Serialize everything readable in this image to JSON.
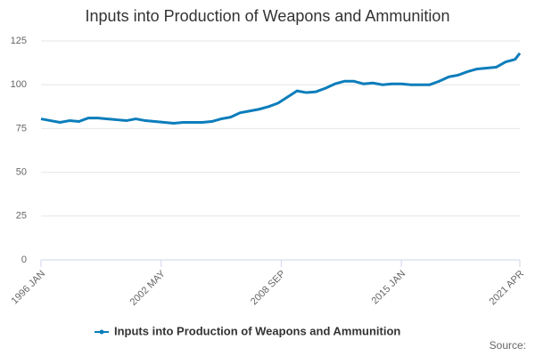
{
  "chart_data": {
    "type": "line",
    "title": "Inputs into Production of Weapons and Ammunition",
    "x": [
      "1996 JAN",
      "1996 JUL",
      "1997 JAN",
      "1997 JUL",
      "1998 JAN",
      "1998 JUL",
      "1999 JAN",
      "1999 JUL",
      "2000 JAN",
      "2000 JUL",
      "2001 JAN",
      "2001 JUL",
      "2002 JAN",
      "2002 JUL",
      "2003 JAN",
      "2003 JUL",
      "2004 JAN",
      "2004 JUL",
      "2005 JAN",
      "2005 JUL",
      "2006 JAN",
      "2006 JUL",
      "2007 JAN",
      "2007 JUL",
      "2008 JAN",
      "2008 JUL",
      "2009 JAN",
      "2009 JUL",
      "2010 JAN",
      "2010 JUL",
      "2011 JAN",
      "2011 JUL",
      "2012 JAN",
      "2012 JUL",
      "2013 JAN",
      "2013 JUL",
      "2014 JAN",
      "2014 JUL",
      "2015 JAN",
      "2015 JUL",
      "2016 JAN",
      "2016 JUL",
      "2017 JAN",
      "2017 JUL",
      "2018 JAN",
      "2018 JUL",
      "2019 JAN",
      "2019 JUL",
      "2020 JAN",
      "2020 JUL",
      "2021 JAN",
      "2021 APR"
    ],
    "series": [
      {
        "name": "Inputs into Production of Weapons and Ammunition",
        "color": "#0b7dbb",
        "values": [
          80.5,
          79.5,
          78.5,
          79.5,
          79,
          81,
          81,
          80.5,
          80,
          79.5,
          80.5,
          79.5,
          79,
          78.5,
          78,
          78.5,
          78.5,
          78.5,
          79,
          80.5,
          81.5,
          84,
          85,
          86,
          87.5,
          89.5,
          93,
          96.5,
          95.5,
          96,
          98,
          100.5,
          102,
          102,
          100.5,
          101,
          100,
          100.5,
          100.5,
          100,
          100,
          100,
          102,
          104.5,
          105.5,
          107.5,
          109,
          109.5,
          110,
          113,
          114.5,
          118
        ]
      }
    ],
    "xticks": [
      "1996 JAN",
      "2002 MAY",
      "2008 SEP",
      "2015 JAN",
      "2021 APR"
    ],
    "ylim": [
      0,
      125
    ],
    "yticks": [
      0,
      25,
      50,
      75,
      100,
      125
    ],
    "grid": true,
    "legend": "bottom",
    "source": "Source:"
  }
}
